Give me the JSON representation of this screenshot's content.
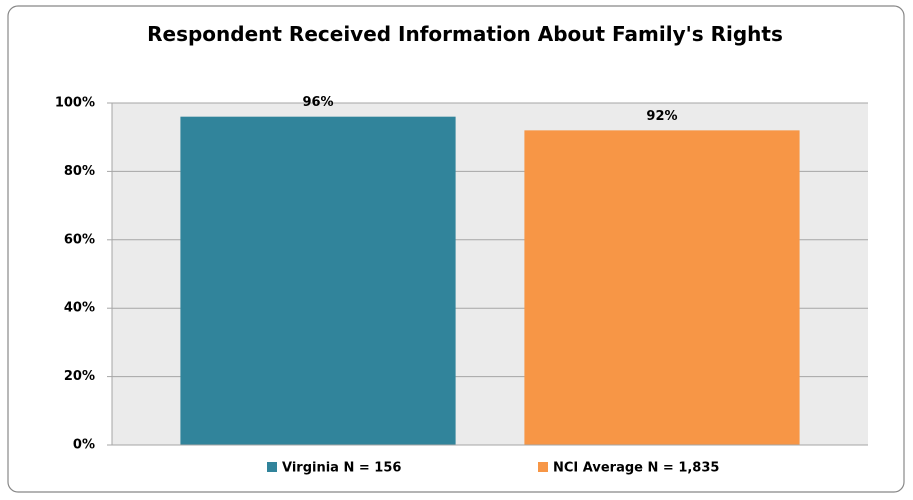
{
  "chart_data": {
    "type": "bar",
    "title": "Respondent Received Information About Family's Rights",
    "categories": [
      null
    ],
    "series": [
      {
        "name": "Virginia N = 156",
        "color": "#31849b",
        "values": [
          96
        ],
        "value_labels": [
          "96%"
        ]
      },
      {
        "name": "NCI Average N = 1,835",
        "color": "#f79646",
        "values": [
          92
        ],
        "value_labels": [
          "92%"
        ]
      }
    ],
    "ylim": [
      0,
      100
    ],
    "yticks": [
      {
        "value": 0,
        "label": "0%"
      },
      {
        "value": 20,
        "label": "20%"
      },
      {
        "value": 40,
        "label": "40%"
      },
      {
        "value": 60,
        "label": "60%"
      },
      {
        "value": 80,
        "label": "80%"
      },
      {
        "value": 100,
        "label": "100%"
      }
    ],
    "grid": true,
    "legend": "bottom"
  }
}
